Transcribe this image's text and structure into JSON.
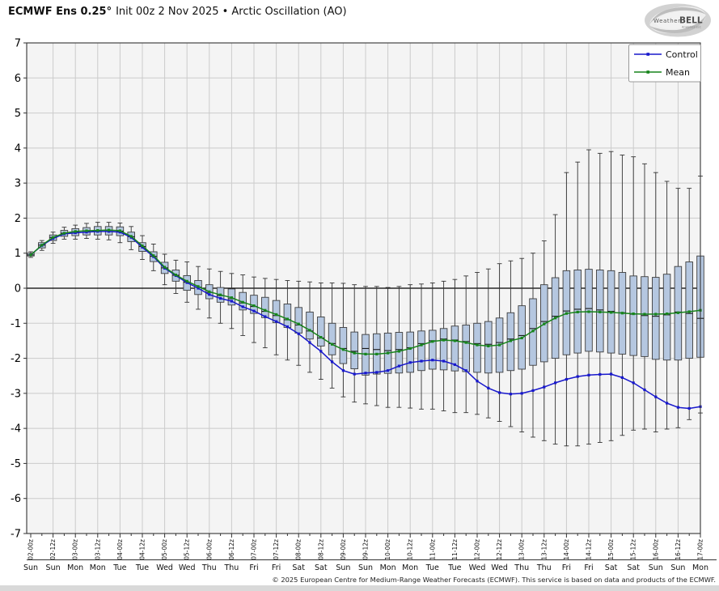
{
  "header": {
    "title_bold": "ECMWF Ens 0.25°",
    "title_rest": "Init 00z 2 Nov 2025 • Arctic Oscillation (AO)",
    "logo": {
      "weather": "Weather",
      "bell": "BELL",
      "sub": "Analytics LLC"
    }
  },
  "footer": {
    "copyright": "© 2025 European Centre for Medium-Range Weather Forecasts (ECMWF). This service is based on data and products of the ECMWF."
  },
  "chart_data": {
    "type": "box-whisker-ensemble-with-lines",
    "title": "ECMWF Ens 0.25° Init 00z 2 Nov 2025 • Arctic Oscillation (AO)",
    "ylabel": "",
    "xlabel": "",
    "ylim": [
      -7,
      7
    ],
    "y_ticks": [
      7,
      6,
      5,
      4,
      3,
      2,
      1,
      0,
      -1,
      -2,
      -3,
      -4,
      -5,
      -6,
      -7
    ],
    "x_step_hours": 6,
    "x_tick_labels": [
      "02-00z",
      "02-12z",
      "03-00z",
      "03-12z",
      "04-00z",
      "04-12z",
      "05-00z",
      "05-12z",
      "06-00z",
      "06-12z",
      "07-00z",
      "07-12z",
      "08-00z",
      "08-12z",
      "09-00z",
      "09-12z",
      "10-00z",
      "10-12z",
      "11-00z",
      "11-12z",
      "12-00z",
      "12-12z",
      "13-00z",
      "13-12z",
      "14-00z",
      "14-12z",
      "15-00z",
      "15-12z",
      "16-00z",
      "16-12z",
      "17-00z"
    ],
    "x_day_labels": [
      "Sun",
      "Sun",
      "Mon",
      "Mon",
      "Tue",
      "Tue",
      "Wed",
      "Wed",
      "Thu",
      "Thu",
      "Fri",
      "Fri",
      "Sat",
      "Sat",
      "Sun",
      "Sun",
      "Mon",
      "Mon",
      "Tue",
      "Tue",
      "Wed",
      "Wed",
      "Thu",
      "Thu",
      "Fri",
      "Fri",
      "Sat",
      "Sat",
      "Sun",
      "Sun",
      "Mon"
    ],
    "legend_position": "top-right",
    "grid": true,
    "series": [
      {
        "name": "Control",
        "color": "#1818cc",
        "values": [
          0.95,
          1.22,
          1.42,
          1.55,
          1.58,
          1.6,
          1.62,
          1.62,
          1.6,
          1.45,
          1.17,
          0.9,
          0.57,
          0.36,
          0.16,
          0,
          -0.18,
          -0.29,
          -0.37,
          -0.53,
          -0.65,
          -0.81,
          -0.95,
          -1.1,
          -1.3,
          -1.55,
          -1.8,
          -2.1,
          -2.35,
          -2.45,
          -2.42,
          -2.4,
          -2.35,
          -2.22,
          -2.12,
          -2.08,
          -2.05,
          -2.08,
          -2.18,
          -2.35,
          -2.65,
          -2.85,
          -2.98,
          -3.02,
          -3,
          -2.92,
          -2.82,
          -2.7,
          -2.6,
          -2.52,
          -2.48,
          -2.46,
          -2.45,
          -2.55,
          -2.7,
          -2.9,
          -3.1,
          -3.28,
          -3.4,
          -3.43,
          -3.38
        ]
      },
      {
        "name": "Mean",
        "color": "#17841c",
        "values": [
          0.95,
          1.23,
          1.45,
          1.57,
          1.62,
          1.64,
          1.65,
          1.66,
          1.64,
          1.48,
          1.21,
          0.93,
          0.6,
          0.38,
          0.2,
          0.05,
          -0.1,
          -0.19,
          -0.27,
          -0.4,
          -0.5,
          -0.63,
          -0.75,
          -0.88,
          -1.02,
          -1.2,
          -1.4,
          -1.6,
          -1.75,
          -1.85,
          -1.88,
          -1.88,
          -1.85,
          -1.8,
          -1.72,
          -1.62,
          -1.52,
          -1.48,
          -1.5,
          -1.55,
          -1.62,
          -1.65,
          -1.62,
          -1.5,
          -1.42,
          -1.22,
          -1.02,
          -0.85,
          -0.72,
          -0.68,
          -0.67,
          -0.68,
          -0.69,
          -0.71,
          -0.73,
          -0.74,
          -0.74,
          -0.73,
          -0.7,
          -0.67,
          -0.63
        ]
      }
    ],
    "boxes": {
      "median": [
        0.95,
        1.23,
        1.45,
        1.57,
        1.61,
        1.63,
        1.64,
        1.65,
        1.63,
        1.47,
        1.19,
        0.91,
        0.58,
        0.37,
        0.17,
        0.03,
        -0.12,
        -0.21,
        -0.3,
        -0.42,
        -0.52,
        -0.66,
        -0.78,
        -0.9,
        -1.05,
        -1.22,
        -1.42,
        -1.58,
        -1.72,
        -1.8,
        -1.72,
        -1.75,
        -1.78,
        -1.75,
        -1.7,
        -1.58,
        -1.5,
        -1.45,
        -1.48,
        -1.52,
        -1.58,
        -1.6,
        -1.55,
        -1.45,
        -1.35,
        -1.15,
        -0.95,
        -0.8,
        -0.65,
        -0.6,
        -0.58,
        -0.62,
        -0.66,
        -0.7,
        -0.74,
        -0.78,
        -0.8,
        -0.76,
        -0.68,
        -0.72,
        -0.86
      ],
      "q1": [
        0.92,
        1.15,
        1.36,
        1.48,
        1.5,
        1.52,
        1.52,
        1.52,
        1.5,
        1.33,
        1.05,
        0.76,
        0.42,
        0.2,
        -0.06,
        -0.18,
        -0.3,
        -0.4,
        -0.48,
        -0.62,
        -0.72,
        -0.84,
        -0.98,
        -1.12,
        -1.28,
        -1.45,
        -1.65,
        -1.9,
        -2.15,
        -2.3,
        -2.48,
        -2.45,
        -2.43,
        -2.42,
        -2.4,
        -2.35,
        -2.31,
        -2.33,
        -2.36,
        -2.38,
        -2.4,
        -2.42,
        -2.4,
        -2.35,
        -2.31,
        -2.2,
        -2.1,
        -2,
        -1.9,
        -1.85,
        -1.8,
        -1.82,
        -1.85,
        -1.88,
        -1.92,
        -1.95,
        -2.03,
        -2.05,
        -2.05,
        -2,
        -1.97
      ],
      "q3": [
        1,
        1.3,
        1.52,
        1.65,
        1.7,
        1.73,
        1.76,
        1.76,
        1.75,
        1.6,
        1.3,
        1.04,
        0.74,
        0.52,
        0.36,
        0.22,
        0.1,
        0.02,
        -0.02,
        -0.12,
        -0.2,
        -0.26,
        -0.35,
        -0.45,
        -0.55,
        -0.68,
        -0.82,
        -1,
        -1.12,
        -1.25,
        -1.32,
        -1.3,
        -1.28,
        -1.26,
        -1.25,
        -1.22,
        -1.2,
        -1.15,
        -1.08,
        -1.05,
        -1,
        -0.95,
        -0.85,
        -0.7,
        -0.5,
        -0.3,
        0.1,
        0.3,
        0.5,
        0.52,
        0.54,
        0.52,
        0.5,
        0.45,
        0.35,
        0.33,
        0.31,
        0.4,
        0.62,
        0.75,
        0.92
      ],
      "whisker_lo": [
        0.88,
        1.08,
        1.28,
        1.4,
        1.4,
        1.42,
        1.4,
        1.38,
        1.3,
        1.1,
        0.82,
        0.5,
        0.1,
        -0.15,
        -0.4,
        -0.6,
        -0.85,
        -1,
        -1.15,
        -1.35,
        -1.55,
        -1.7,
        -1.9,
        -2.05,
        -2.2,
        -2.4,
        -2.6,
        -2.85,
        -3.1,
        -3.25,
        -3.3,
        -3.35,
        -3.4,
        -3.4,
        -3.42,
        -3.45,
        -3.45,
        -3.5,
        -3.55,
        -3.55,
        -3.6,
        -3.7,
        -3.8,
        -3.95,
        -4.1,
        -4.25,
        -4.35,
        -4.45,
        -4.5,
        -4.5,
        -4.45,
        -4.4,
        -4.35,
        -4.2,
        -4.05,
        -4.02,
        -4.1,
        -4.02,
        -3.98,
        -3.75,
        -3.56
      ],
      "whisker_hi": [
        1.04,
        1.36,
        1.6,
        1.74,
        1.8,
        1.85,
        1.88,
        1.88,
        1.86,
        1.76,
        1.5,
        1.26,
        0.97,
        0.8,
        0.75,
        0.62,
        0.55,
        0.48,
        0.42,
        0.38,
        0.32,
        0.28,
        0.25,
        0.22,
        0.2,
        0.18,
        0.15,
        0.15,
        0.14,
        0.1,
        0.05,
        0.05,
        0.02,
        0.05,
        0.1,
        0.12,
        0.15,
        0.2,
        0.25,
        0.35,
        0.45,
        0.55,
        0.7,
        0.78,
        0.85,
        1,
        1.35,
        2.1,
        3.3,
        3.6,
        3.95,
        3.85,
        3.9,
        3.8,
        3.75,
        3.55,
        3.3,
        3.05,
        2.85,
        2.85,
        3.2
      ]
    },
    "colors": {
      "control": "#1818cc",
      "mean": "#17841c",
      "box_fill": "#b5c7e0",
      "box_edge": "#3d3d3d",
      "whisker": "#333333",
      "median": "#1a1a1a",
      "zero_line": "#000000",
      "grid": "#cbcbcb",
      "plot_bg": "#f4f4f4",
      "axis": "#333333"
    }
  }
}
